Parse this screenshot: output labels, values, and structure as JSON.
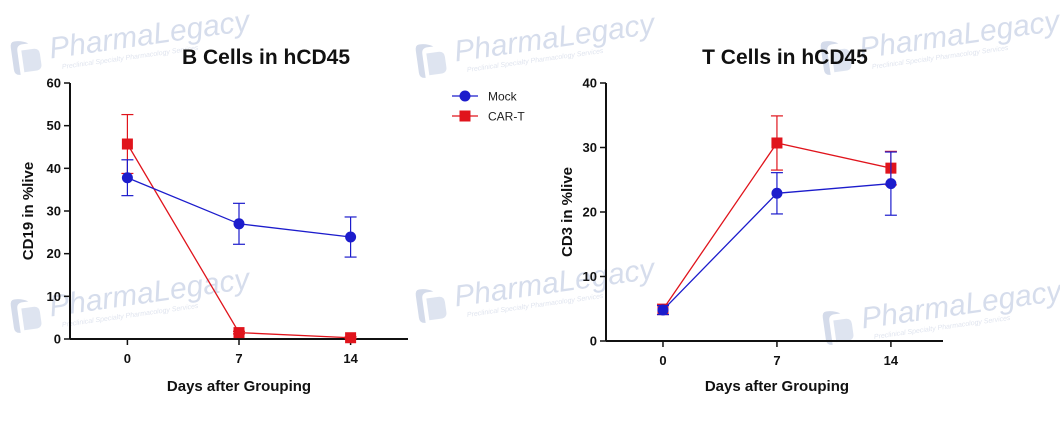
{
  "watermark": {
    "brand": "PharmaLegacy",
    "tagline": "Preclinical Specialty Pharmacology Services"
  },
  "legend": [
    {
      "name": "Mock",
      "color": "#1c1ccc",
      "marker": "circle"
    },
    {
      "name": "CAR-T",
      "color": "#e0141c",
      "marker": "square"
    }
  ],
  "chart_data": [
    {
      "type": "line",
      "title": "B Cells in hCD45",
      "xlabel": "Days after Grouping",
      "ylabel": "CD19 in %live",
      "x": [
        0,
        7,
        14
      ],
      "xticks": [
        "0",
        "7",
        "14"
      ],
      "ylim": [
        0,
        60
      ],
      "yticks": [
        0,
        10,
        20,
        30,
        40,
        50,
        60
      ],
      "series": [
        {
          "name": "Mock",
          "values": [
            37.8,
            27.0,
            23.9
          ],
          "error": [
            4.2,
            4.8,
            4.7
          ]
        },
        {
          "name": "CAR-T",
          "values": [
            45.7,
            1.5,
            0.3
          ],
          "error": [
            6.9,
            0.3,
            0.2
          ]
        }
      ]
    },
    {
      "type": "line",
      "title": "T Cells in hCD45",
      "xlabel": "Days after Grouping",
      "ylabel": "CD3 in %live",
      "x": [
        0,
        7,
        14
      ],
      "xticks": [
        "0",
        "7",
        "14"
      ],
      "ylim": [
        0,
        40
      ],
      "yticks": [
        0,
        10,
        20,
        30,
        40
      ],
      "series": [
        {
          "name": "Mock",
          "values": [
            4.8,
            22.9,
            24.4
          ],
          "error": [
            0.7,
            3.2,
            4.9
          ]
        },
        {
          "name": "CAR-T",
          "values": [
            4.9,
            30.7,
            26.8
          ],
          "error": [
            0.8,
            4.2,
            2.6
          ]
        }
      ]
    }
  ]
}
